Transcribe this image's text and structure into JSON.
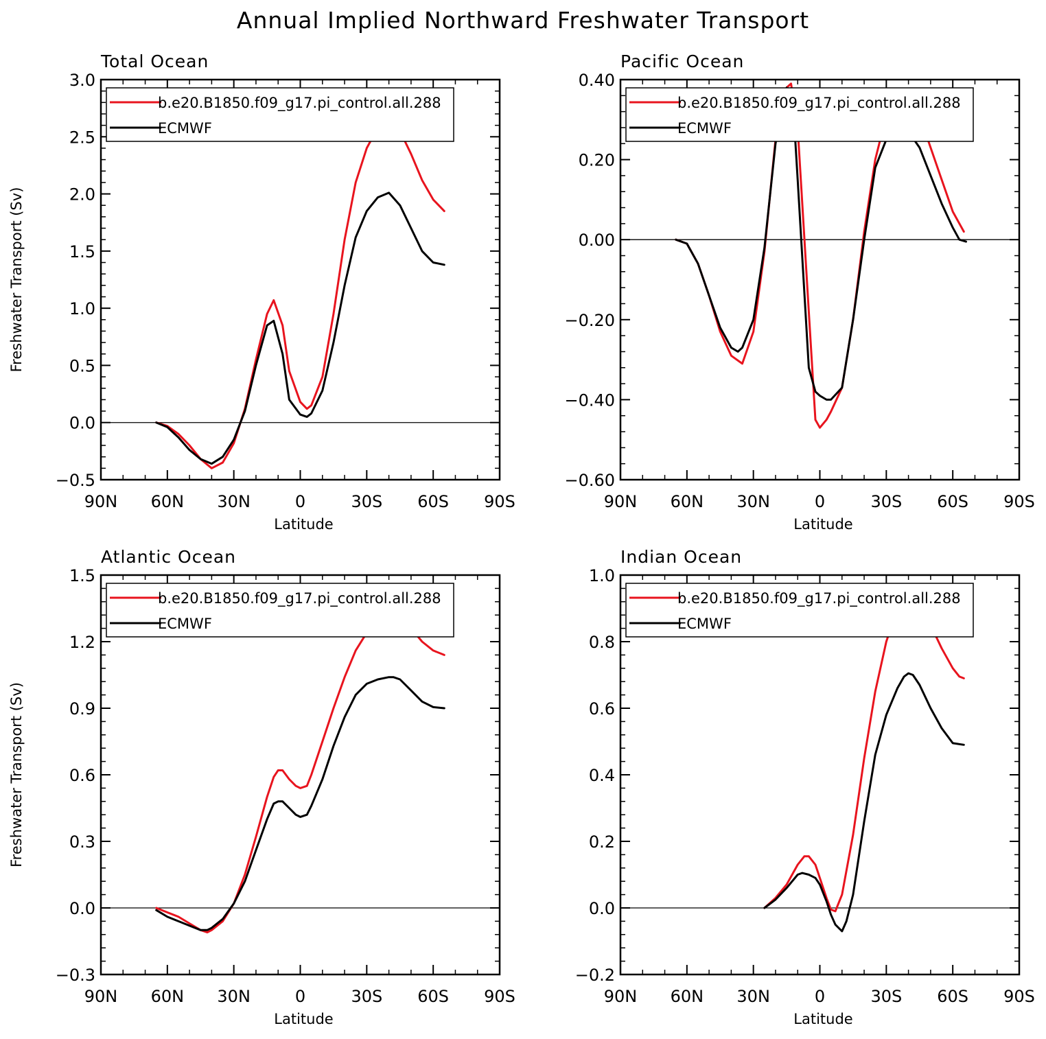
{
  "title": "Annual Implied Northward Freshwater Transport",
  "colors": {
    "model": "#e8141e",
    "obs": "#000000",
    "zero_line": "#000000"
  },
  "chart_data": [
    {
      "type": "line",
      "title": "Total Ocean",
      "xlabel": "Latitude",
      "ylabel": "Freshwater Transport (Sv)",
      "xlim": [
        -90,
        90
      ],
      "x_ticks": [
        {
          "v": -90,
          "label": "90N"
        },
        {
          "v": -60,
          "label": "60N"
        },
        {
          "v": -30,
          "label": "30N"
        },
        {
          "v": 0,
          "label": "0"
        },
        {
          "v": 30,
          "label": "30S"
        },
        {
          "v": 60,
          "label": "60S"
        },
        {
          "v": 90,
          "label": "90S"
        }
      ],
      "ylim": [
        -0.5,
        3.0
      ],
      "y_ticks": [
        {
          "v": -0.5,
          "label": "−0.5"
        },
        {
          "v": 0,
          "label": "0.0"
        },
        {
          "v": 0.5,
          "label": "0.5"
        },
        {
          "v": 1.0,
          "label": "1.0"
        },
        {
          "v": 1.5,
          "label": "1.5"
        },
        {
          "v": 2.0,
          "label": "2.0"
        },
        {
          "v": 2.5,
          "label": "2.5"
        },
        {
          "v": 3.0,
          "label": "3.0"
        }
      ],
      "legend_location": "top",
      "series": [
        {
          "name": "b.e20.B1850.f09_g17.pi_control.all.288",
          "color": "#e8141e",
          "x": [
            -65,
            -60,
            -55,
            -50,
            -45,
            -40,
            -35,
            -30,
            -25,
            -20,
            -15,
            -12,
            -8,
            -5,
            0,
            3,
            5,
            10,
            15,
            20,
            25,
            30,
            35,
            40,
            45,
            50,
            55,
            60,
            65
          ],
          "y": [
            0,
            -0.03,
            -0.1,
            -0.2,
            -0.32,
            -0.4,
            -0.35,
            -0.18,
            0.12,
            0.55,
            0.95,
            1.07,
            0.85,
            0.45,
            0.18,
            0.12,
            0.15,
            0.4,
            0.95,
            1.6,
            2.1,
            2.4,
            2.58,
            2.65,
            2.55,
            2.35,
            2.12,
            1.95,
            1.85
          ]
        },
        {
          "name": "ECMWF",
          "color": "#000000",
          "x": [
            -65,
            -60,
            -55,
            -50,
            -45,
            -40,
            -35,
            -30,
            -25,
            -20,
            -15,
            -12,
            -8,
            -5,
            0,
            3,
            5,
            10,
            15,
            20,
            25,
            30,
            35,
            40,
            45,
            50,
            55,
            60,
            65
          ],
          "y": [
            0,
            -0.04,
            -0.13,
            -0.24,
            -0.32,
            -0.36,
            -0.3,
            -0.15,
            0.1,
            0.5,
            0.85,
            0.89,
            0.6,
            0.2,
            0.07,
            0.05,
            0.08,
            0.28,
            0.7,
            1.2,
            1.62,
            1.85,
            1.97,
            2.01,
            1.9,
            1.7,
            1.5,
            1.4,
            1.38
          ]
        }
      ]
    },
    {
      "type": "line",
      "title": "Pacific Ocean",
      "xlabel": "Latitude",
      "ylabel": "",
      "xlim": [
        -90,
        90
      ],
      "x_ticks": [
        {
          "v": -90,
          "label": "90N"
        },
        {
          "v": -60,
          "label": "60N"
        },
        {
          "v": -30,
          "label": "30N"
        },
        {
          "v": 0,
          "label": "0"
        },
        {
          "v": 30,
          "label": "30S"
        },
        {
          "v": 60,
          "label": "60S"
        },
        {
          "v": 90,
          "label": "90S"
        }
      ],
      "ylim": [
        -0.6,
        0.4
      ],
      "y_ticks": [
        {
          "v": -0.6,
          "label": "−0.60"
        },
        {
          "v": -0.4,
          "label": "−0.40"
        },
        {
          "v": -0.2,
          "label": "−0.20"
        },
        {
          "v": 0,
          "label": "0.00"
        },
        {
          "v": 0.2,
          "label": "0.20"
        },
        {
          "v": 0.4,
          "label": "0.40"
        }
      ],
      "legend_location": "top",
      "series": [
        {
          "name": "b.e20.B1850.f09_g17.pi_control.all.288",
          "color": "#e8141e",
          "x": [
            -65,
            -60,
            -55,
            -50,
            -45,
            -40,
            -35,
            -30,
            -25,
            -20,
            -15,
            -13,
            -10,
            -5,
            -2,
            0,
            3,
            5,
            10,
            15,
            20,
            25,
            30,
            35,
            38,
            40,
            45,
            50,
            55,
            60,
            65
          ],
          "y": [
            0,
            -0.01,
            -0.06,
            -0.14,
            -0.23,
            -0.29,
            -0.31,
            -0.23,
            -0.03,
            0.25,
            0.38,
            0.39,
            0.28,
            -0.18,
            -0.45,
            -0.47,
            -0.45,
            -0.43,
            -0.37,
            -0.2,
            0.02,
            0.2,
            0.31,
            0.35,
            0.36,
            0.35,
            0.31,
            0.23,
            0.15,
            0.07,
            0.02
          ]
        },
        {
          "name": "ECMWF",
          "color": "#000000",
          "x": [
            -65,
            -60,
            -55,
            -50,
            -45,
            -40,
            -37,
            -35,
            -30,
            -25,
            -20,
            -15,
            -12,
            -10,
            -5,
            -2,
            0,
            3,
            5,
            10,
            15,
            20,
            25,
            30,
            35,
            38,
            40,
            45,
            50,
            55,
            60,
            63,
            66
          ],
          "y": [
            0,
            -0.01,
            -0.06,
            -0.14,
            -0.22,
            -0.27,
            -0.28,
            -0.27,
            -0.2,
            -0.02,
            0.24,
            0.38,
            0.33,
            0.15,
            -0.32,
            -0.38,
            -0.39,
            -0.4,
            -0.4,
            -0.37,
            -0.2,
            0.0,
            0.18,
            0.25,
            0.27,
            0.275,
            0.27,
            0.23,
            0.16,
            0.09,
            0.03,
            0.0,
            -0.005
          ]
        }
      ]
    },
    {
      "type": "line",
      "title": "Atlantic Ocean",
      "xlabel": "Latitude",
      "ylabel": "Freshwater Transport (Sv)",
      "xlim": [
        -90,
        90
      ],
      "x_ticks": [
        {
          "v": -90,
          "label": "90N"
        },
        {
          "v": -60,
          "label": "60N"
        },
        {
          "v": -30,
          "label": "30N"
        },
        {
          "v": 0,
          "label": "0"
        },
        {
          "v": 30,
          "label": "30S"
        },
        {
          "v": 60,
          "label": "60S"
        },
        {
          "v": 90,
          "label": "90S"
        }
      ],
      "ylim": [
        -0.3,
        1.5
      ],
      "y_ticks": [
        {
          "v": -0.3,
          "label": "−0.3"
        },
        {
          "v": 0,
          "label": "0.0"
        },
        {
          "v": 0.3,
          "label": "0.3"
        },
        {
          "v": 0.6,
          "label": "0.6"
        },
        {
          "v": 0.9,
          "label": "0.9"
        },
        {
          "v": 1.2,
          "label": "1.2"
        },
        {
          "v": 1.5,
          "label": "1.5"
        }
      ],
      "legend_location": "top",
      "series": [
        {
          "name": "b.e20.B1850.f09_g17.pi_control.all.288",
          "color": "#e8141e",
          "x": [
            -65,
            -60,
            -55,
            -50,
            -45,
            -42,
            -40,
            -35,
            -30,
            -25,
            -20,
            -15,
            -12,
            -10,
            -8,
            -5,
            -2,
            0,
            3,
            5,
            10,
            15,
            20,
            25,
            30,
            35,
            40,
            42,
            45,
            50,
            55,
            60,
            65
          ],
          "y": [
            0,
            -0.02,
            -0.04,
            -0.07,
            -0.1,
            -0.11,
            -0.1,
            -0.06,
            0.02,
            0.15,
            0.32,
            0.5,
            0.59,
            0.62,
            0.62,
            0.58,
            0.55,
            0.54,
            0.55,
            0.6,
            0.75,
            0.9,
            1.04,
            1.16,
            1.24,
            1.3,
            1.33,
            1.33,
            1.31,
            1.26,
            1.2,
            1.16,
            1.14
          ]
        },
        {
          "name": "ECMWF",
          "color": "#000000",
          "x": [
            -65,
            -60,
            -55,
            -50,
            -45,
            -42,
            -40,
            -35,
            -30,
            -25,
            -20,
            -15,
            -12,
            -10,
            -8,
            -5,
            -2,
            0,
            3,
            5,
            10,
            15,
            20,
            25,
            30,
            35,
            40,
            42,
            45,
            50,
            55,
            60,
            65
          ],
          "y": [
            -0.01,
            -0.04,
            -0.06,
            -0.08,
            -0.1,
            -0.1,
            -0.09,
            -0.05,
            0.02,
            0.12,
            0.26,
            0.4,
            0.47,
            0.48,
            0.48,
            0.45,
            0.42,
            0.41,
            0.42,
            0.46,
            0.58,
            0.73,
            0.86,
            0.96,
            1.01,
            1.03,
            1.04,
            1.04,
            1.03,
            0.98,
            0.93,
            0.905,
            0.9
          ]
        }
      ]
    },
    {
      "type": "line",
      "title": "Indian Ocean",
      "xlabel": "Latitude",
      "ylabel": "",
      "xlim": [
        -90,
        90
      ],
      "x_ticks": [
        {
          "v": -90,
          "label": "90N"
        },
        {
          "v": -60,
          "label": "60N"
        },
        {
          "v": -30,
          "label": "30N"
        },
        {
          "v": 0,
          "label": "0"
        },
        {
          "v": 30,
          "label": "30S"
        },
        {
          "v": 60,
          "label": "60S"
        },
        {
          "v": 90,
          "label": "90S"
        }
      ],
      "ylim": [
        -0.2,
        1.0
      ],
      "y_ticks": [
        {
          "v": -0.2,
          "label": "−0.2"
        },
        {
          "v": 0,
          "label": "0.0"
        },
        {
          "v": 0.2,
          "label": "0.2"
        },
        {
          "v": 0.4,
          "label": "0.4"
        },
        {
          "v": 0.6,
          "label": "0.6"
        },
        {
          "v": 0.8,
          "label": "0.8"
        },
        {
          "v": 1.0,
          "label": "1.0"
        }
      ],
      "legend_location": "top",
      "series": [
        {
          "name": "b.e20.B1850.f09_g17.pi_control.all.288",
          "color": "#e8141e",
          "x": [
            -25,
            -20,
            -15,
            -10,
            -7,
            -5,
            -2,
            0,
            3,
            5,
            7,
            10,
            15,
            20,
            25,
            30,
            35,
            38,
            40,
            42,
            45,
            50,
            55,
            60,
            63,
            65
          ],
          "y": [
            0,
            0.03,
            0.07,
            0.13,
            0.155,
            0.155,
            0.13,
            0.09,
            0.03,
            -0.005,
            -0.01,
            0.04,
            0.22,
            0.45,
            0.65,
            0.8,
            0.9,
            0.94,
            0.955,
            0.95,
            0.92,
            0.85,
            0.78,
            0.72,
            0.695,
            0.69
          ]
        },
        {
          "name": "ECMWF",
          "color": "#000000",
          "x": [
            -25,
            -20,
            -15,
            -10,
            -8,
            -5,
            -2,
            0,
            3,
            5,
            7,
            10,
            12,
            15,
            20,
            25,
            30,
            35,
            38,
            40,
            42,
            45,
            50,
            55,
            60,
            65
          ],
          "y": [
            0,
            0.025,
            0.06,
            0.1,
            0.105,
            0.1,
            0.09,
            0.07,
            0.02,
            -0.02,
            -0.05,
            -0.07,
            -0.04,
            0.04,
            0.26,
            0.46,
            0.58,
            0.66,
            0.695,
            0.705,
            0.7,
            0.67,
            0.6,
            0.54,
            0.495,
            0.49
          ]
        }
      ]
    }
  ]
}
